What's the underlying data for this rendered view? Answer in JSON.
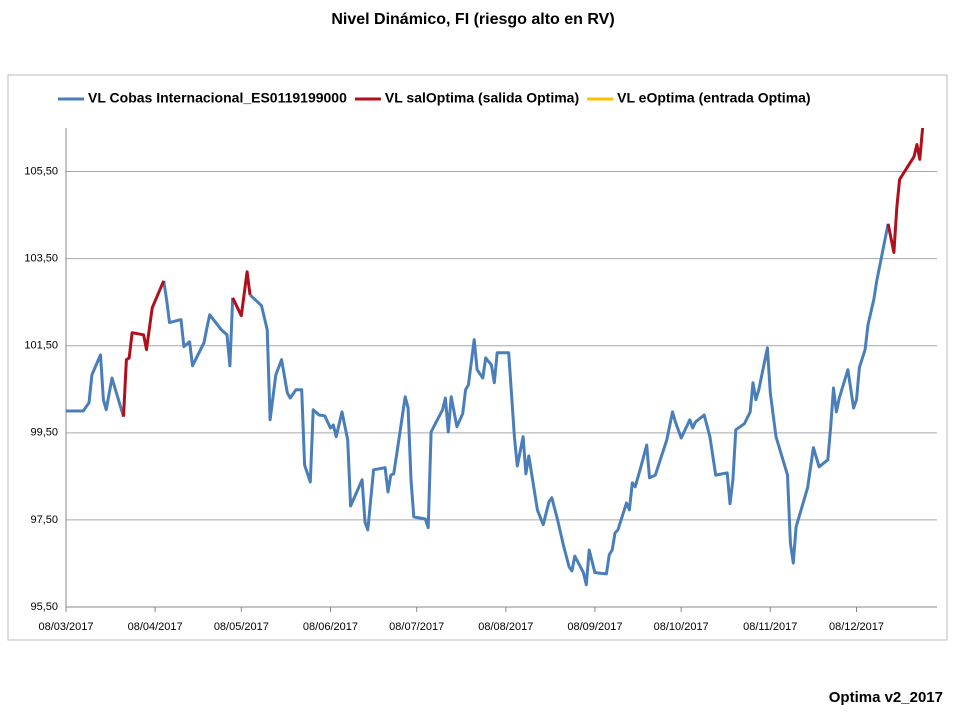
{
  "chart_data": {
    "type": "line",
    "title": "Nivel Dinámico, FI (riesgo alto en RV)",
    "footer": "Optima v2_2017",
    "xlim": [
      "08/03/2017",
      "05/01/2018"
    ],
    "xticks": [
      "08/03/2017",
      "08/04/2017",
      "08/05/2017",
      "08/06/2017",
      "08/07/2017",
      "08/08/2017",
      "08/09/2017",
      "08/10/2017",
      "08/11/2017",
      "08/12/2017"
    ],
    "ylim": [
      95.5,
      106.5
    ],
    "yticks": [
      {
        "value": 95.5,
        "label": "95,50"
      },
      {
        "value": 97.5,
        "label": "97,50"
      },
      {
        "value": 99.5,
        "label": "99,50"
      },
      {
        "value": 101.5,
        "label": "101,50"
      },
      {
        "value": 103.5,
        "label": "103,50"
      },
      {
        "value": 105.5,
        "label": "105,50"
      }
    ],
    "grid": true,
    "legend": "top",
    "series": [
      {
        "name": "VL Cobas Internacional_ES0119199000",
        "color": "#4a7ebb",
        "x": [
          "08/03/2017",
          "14/03/2017",
          "16/03/2017",
          "17/03/2017",
          "20/03/2017",
          "21/03/2017",
          "22/03/2017",
          "24/03/2017",
          "28/03/2017",
          "15/04/2017",
          "11/04/2017",
          "12/04/2017",
          "13/04/2017",
          "17/04/2017",
          "18/04/2017",
          "20/04/2017",
          "21/04/2017",
          "25/04/2017",
          "26/04/2017",
          "27/04/2017",
          "01/05/2017",
          "03/05/2017",
          "04/05/2017",
          "05/05/2017",
          "08/05/2017",
          "11/05/2017",
          "15/05/2017",
          "17/05/2017",
          "18/05/2017",
          "20/05/2017",
          "22/05/2017",
          "24/05/2017",
          "25/05/2017",
          "27/05/2017",
          "29/05/2017",
          "30/05/2017",
          "01/06/2017",
          "02/06/2017",
          "04/06/2017",
          "06/06/2017",
          "08/06/2017",
          "09/06/2017",
          "10/06/2017",
          "12/06/2017",
          "14/06/2017",
          "15/06/2017",
          "19/06/2017",
          "20/06/2017",
          "21/06/2017",
          "23/06/2017",
          "27/06/2017",
          "28/06/2017",
          "29/06/2017",
          "30/06/2017",
          "01/07/2017",
          "04/07/2017",
          "05/07/2017",
          "06/07/2017",
          "07/07/2017",
          "11/07/2017",
          "12/07/2017",
          "13/07/2017",
          "17/07/2017",
          "18/07/2017",
          "19/07/2017",
          "20/07/2017",
          "22/07/2017",
          "24/07/2017",
          "25/07/2017",
          "26/07/2017",
          "28/07/2017",
          "29/07/2017",
          "31/07/2017",
          "01/08/2017",
          "03/08/2017",
          "04/08/2017",
          "05/08/2017",
          "09/08/2017",
          "11/08/2017",
          "12/08/2017",
          "14/08/2017",
          "15/08/2017",
          "16/08/2017",
          "19/08/2017",
          "21/08/2017",
          "23/08/2017",
          "24/08/2017",
          "26/08/2017",
          "28/08/2017",
          "30/08/2017",
          "31/08/2017",
          "01/09/2017",
          "04/09/2017",
          "05/09/2017",
          "06/09/2017",
          "08/09/2017",
          "12/09/2017",
          "13/09/2017",
          "14/09/2017",
          "15/09/2017",
          "16/09/2017",
          "19/09/2017",
          "20/09/2017",
          "21/09/2017",
          "22/09/2017",
          "24/09/2017",
          "26/09/2017",
          "27/09/2017",
          "29/09/2017",
          "03/10/2017",
          "05/10/2017",
          "06/10/2017",
          "08/10/2017",
          "11/10/2017",
          "12/10/2017",
          "13/10/2017",
          "16/10/2017",
          "18/10/2017",
          "20/10/2017",
          "24/10/2017",
          "25/10/2017",
          "26/10/2017",
          "27/10/2017",
          "30/10/2017",
          "01/11/2017",
          "02/11/2017",
          "03/11/2017",
          "04/11/2017",
          "07/11/2017",
          "08/11/2017",
          "10/11/2017",
          "14/11/2017",
          "15/11/2017",
          "16/11/2017",
          "17/11/2017",
          "21/11/2017",
          "23/11/2017",
          "25/11/2017",
          "28/11/2017",
          "29/11/2017",
          "30/11/2017",
          "01/12/2017",
          "02/12/2017",
          "05/12/2017",
          "07/12/2017",
          "08/12/2017",
          "09/12/2017",
          "11/12/2017",
          "12/12/2017",
          "14/12/2017",
          "15/12/2017",
          "19/12/2017"
        ],
        "values": [
          100.0,
          100.0,
          100.19,
          100.83,
          101.29,
          100.26,
          100.03,
          100.76,
          99.87,
          null,
          102.99,
          102.56,
          102.03,
          102.1,
          101.48,
          101.59,
          101.04,
          101.57,
          101.91,
          102.21,
          101.87,
          101.75,
          101.04,
          102.6,
          null,
          102.67,
          102.42,
          101.87,
          99.8,
          100.83,
          101.18,
          100.42,
          100.3,
          100.49,
          100.49,
          98.76,
          98.37,
          100.03,
          99.91,
          99.89,
          99.61,
          99.68,
          99.41,
          99.98,
          99.34,
          97.82,
          98.42,
          97.45,
          97.27,
          98.65,
          98.7,
          98.14,
          98.53,
          98.56,
          98.99,
          100.33,
          100.07,
          98.42,
          97.57,
          97.52,
          97.32,
          99.52,
          100.03,
          100.3,
          99.52,
          100.33,
          99.64,
          99.94,
          100.49,
          100.6,
          101.64,
          100.95,
          100.76,
          101.22,
          101.06,
          100.65,
          101.34,
          101.34,
          99.41,
          98.74,
          99.41,
          98.56,
          98.97,
          97.73,
          97.39,
          97.91,
          98.01,
          97.5,
          96.93,
          96.42,
          96.33,
          96.67,
          96.29,
          96.01,
          96.81,
          96.29,
          96.26,
          96.7,
          96.81,
          97.2,
          97.27,
          97.89,
          97.73,
          98.35,
          98.26,
          98.72,
          99.22,
          98.47,
          98.53,
          99.34,
          99.98,
          99.75,
          99.38,
          99.8,
          99.61,
          99.75,
          99.91,
          99.41,
          98.53,
          98.58,
          97.87,
          98.42,
          99.57,
          99.71,
          99.98,
          100.65,
          100.26,
          100.49,
          101.45,
          100.42,
          99.41,
          98.53,
          96.97,
          96.51,
          97.34,
          98.24,
          99.16,
          98.72,
          98.88,
          99.61,
          100.53,
          99.98,
          100.3,
          100.95,
          100.07,
          100.26,
          101.0,
          101.41,
          101.98,
          102.56,
          102.97,
          104.3
        ]
      },
      {
        "name": "VL salOptima (salida Optima)",
        "color": "#b00f1c",
        "x": [
          "28/03/2017",
          "29/03/2017",
          "30/03/2017",
          "31/03/2017",
          "04/04/2017",
          "05/04/2017",
          "07/04/2017",
          "11/04/2017",
          "20/04/2017",
          "05/05/2017",
          "08/05/2017",
          "10/05/2017",
          "11/05/2017",
          "01/06/2017",
          "19/12/2017",
          "21/12/2017",
          "22/12/2017",
          "23/12/2017",
          "28/12/2017",
          "29/12/2017",
          "30/12/2017",
          "31/12/2017"
        ],
        "values": [
          99.87,
          101.18,
          101.22,
          101.8,
          101.75,
          101.41,
          102.37,
          102.99,
          null,
          102.6,
          102.19,
          103.2,
          102.67,
          null,
          104.3,
          103.64,
          104.67,
          105.32,
          105.84,
          106.12,
          105.78,
          106.5
        ]
      },
      {
        "name": "VL eOptima (entrada Optima)",
        "color": "#ffc000",
        "x": [],
        "values": []
      }
    ]
  }
}
